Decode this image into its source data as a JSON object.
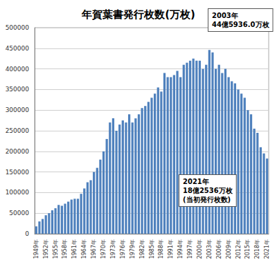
{
  "chart_data": {
    "type": "bar",
    "title": "年賀葉書発行枚数(万枚)",
    "categories": [
      "1949年",
      null,
      null,
      "1952年",
      null,
      null,
      "1955年",
      null,
      null,
      "1958年",
      null,
      null,
      "1961年",
      null,
      null,
      "1964年",
      null,
      null,
      "1967年",
      null,
      null,
      "1970年",
      null,
      null,
      "1973年",
      null,
      null,
      "1976年",
      null,
      null,
      "1979年",
      null,
      null,
      "1982年",
      null,
      null,
      "1985年",
      null,
      null,
      "1988年",
      null,
      null,
      "1991年",
      null,
      null,
      "1994年",
      null,
      null,
      "1997年",
      null,
      null,
      "2000年",
      null,
      null,
      "2003年",
      null,
      null,
      "2006年",
      null,
      null,
      "2009年",
      null,
      null,
      "2012年",
      null,
      null,
      "2015年",
      null,
      null,
      "2018年",
      null,
      null,
      "2021年"
    ],
    "values": [
      18000,
      30000,
      36000,
      45000,
      50000,
      57000,
      62000,
      70000,
      68000,
      73000,
      78000,
      83000,
      85000,
      85000,
      97000,
      110000,
      125000,
      130000,
      150000,
      160000,
      180000,
      200000,
      230000,
      270000,
      280000,
      250000,
      265000,
      275000,
      270000,
      290000,
      270000,
      280000,
      290000,
      305000,
      310000,
      320000,
      330000,
      340000,
      355000,
      345000,
      390000,
      380000,
      380000,
      385000,
      395000,
      380000,
      410000,
      415000,
      420000,
      425000,
      420000,
      420000,
      400000,
      410000,
      445936,
      440000,
      400000,
      410000,
      390000,
      400000,
      380000,
      370000,
      365000,
      350000,
      340000,
      330000,
      300000,
      290000,
      255000,
      245000,
      210000,
      195000,
      182536
    ],
    "color": "#4f81bd",
    "ylim": [
      0,
      500000
    ],
    "yticks": [
      0,
      50000,
      100000,
      150000,
      200000,
      250000,
      300000,
      350000,
      400000,
      450000,
      500000
    ],
    "grid": true,
    "annotations": [
      "2003年\n44億5936.0万枚",
      "2021年\n18億2536万枚\n(当初発行枚数)"
    ]
  }
}
